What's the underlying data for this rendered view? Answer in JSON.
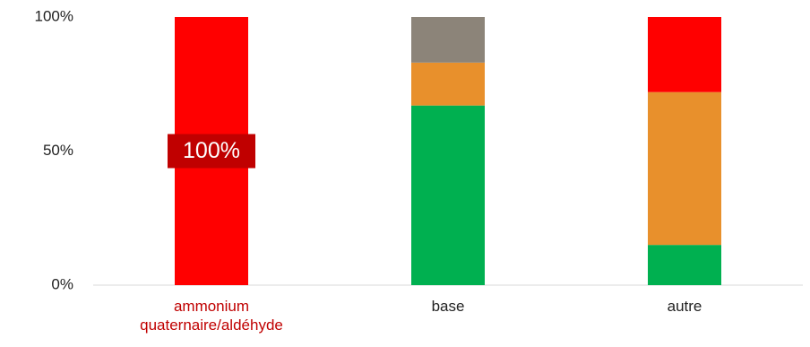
{
  "chart_data": {
    "type": "stacked-bar",
    "categories": [
      "ammonium quaternaire/aldéhyde",
      "base",
      "autre"
    ],
    "series": [
      {
        "color": "#00b050",
        "values": [
          0,
          67,
          15
        ]
      },
      {
        "color": "#e8902c",
        "values": [
          0,
          16,
          57
        ]
      },
      {
        "color": "#8c8479",
        "values": [
          0,
          17,
          0
        ]
      },
      {
        "color": "#ff0000",
        "values": [
          100,
          0,
          28
        ],
        "value_labels": [
          "100%",
          null,
          null
        ]
      }
    ],
    "ylim": [
      0,
      100
    ],
    "yticks": [
      {
        "value": 0,
        "label": "0%"
      },
      {
        "value": 50,
        "label": "50%"
      },
      {
        "value": 100,
        "label": "100%"
      }
    ],
    "grid": false
  }
}
